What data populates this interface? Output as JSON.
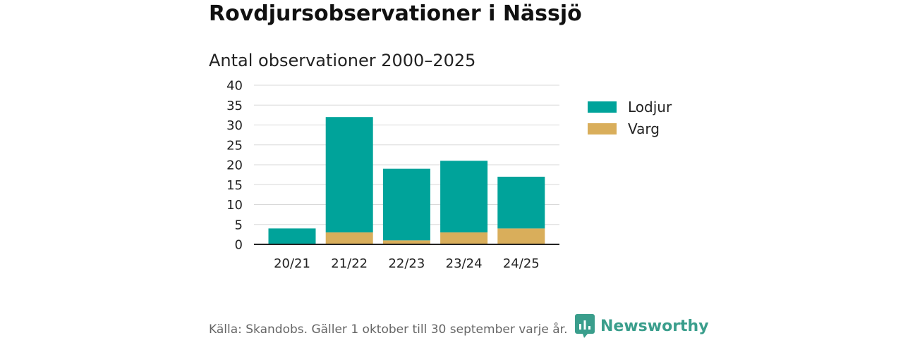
{
  "title": "Rovdjursobservationer i Nässjö",
  "subtitle": "Antal observationer 2000–2025",
  "footer": "Källa: Skandobs. Gäller 1 oktober till 30 september varje år.",
  "brand": {
    "name": "Newsworthy",
    "color": "#3a9e8c"
  },
  "chart_data": {
    "type": "bar",
    "stacked": true,
    "categories": [
      "20/21",
      "21/22",
      "22/23",
      "23/24",
      "24/25"
    ],
    "series": [
      {
        "name": "Varg",
        "color": "#d9ae5b",
        "values": [
          0,
          3,
          1,
          3,
          4
        ]
      },
      {
        "name": "Lodjur",
        "color": "#00a39a",
        "values": [
          4,
          29,
          18,
          18,
          13
        ]
      }
    ],
    "legend_order": [
      "Lodjur",
      "Varg"
    ],
    "ylim": [
      0,
      40
    ],
    "yticks": [
      0,
      5,
      10,
      15,
      20,
      25,
      30,
      35,
      40
    ],
    "grid": true,
    "legend_position": "right"
  }
}
